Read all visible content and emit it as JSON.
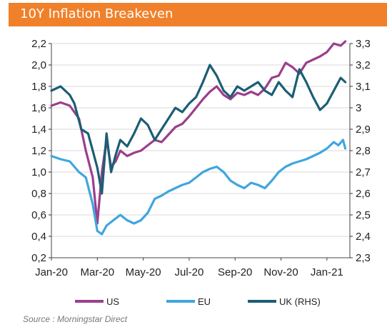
{
  "header": {
    "title": "10Y Inflation Breakeven"
  },
  "footer": {
    "source": "Source : Morningstar Direct"
  },
  "chart_data": {
    "type": "line",
    "title": "10Y Inflation Breakeven",
    "x_ticks": [
      "Jan-20",
      "Mar-20",
      "May-20",
      "Jul-20",
      "Sep-20",
      "Nov-20",
      "Jan-21"
    ],
    "x_range": [
      0,
      13
    ],
    "ylim_left": [
      0.2,
      2.2
    ],
    "yticks_left": [
      "0,2",
      "0,4",
      "0,6",
      "0,8",
      "1,0",
      "1,2",
      "1,4",
      "1,6",
      "1,8",
      "2,0",
      "2,2"
    ],
    "ylim_right": [
      2.3,
      3.3
    ],
    "yticks_right": [
      "2,3",
      "2,4",
      "2,5",
      "2,6",
      "2,7",
      "2,8",
      "2,9",
      "3",
      "3,1",
      "3,2",
      "3,3"
    ],
    "grid": true,
    "legend_position": "bottom",
    "series": [
      {
        "name": "US",
        "axis": "left",
        "color": "#9b3f8c",
        "x": [
          0,
          0.4,
          0.8,
          1.2,
          1.5,
          1.8,
          2.0,
          2.2,
          2.4,
          2.6,
          2.8,
          3.0,
          3.3,
          3.6,
          3.9,
          4.2,
          4.5,
          4.8,
          5.1,
          5.4,
          5.7,
          6.0,
          6.3,
          6.6,
          6.9,
          7.2,
          7.5,
          7.8,
          8.1,
          8.4,
          8.7,
          9.0,
          9.3,
          9.6,
          9.9,
          10.2,
          10.5,
          10.8,
          11.1,
          11.4,
          11.7,
          12.0,
          12.3,
          12.6,
          12.8
        ],
        "values": [
          1.62,
          1.65,
          1.62,
          1.5,
          1.2,
          0.95,
          0.52,
          1.0,
          1.3,
          1.05,
          1.1,
          1.2,
          1.15,
          1.18,
          1.2,
          1.25,
          1.3,
          1.28,
          1.35,
          1.42,
          1.45,
          1.52,
          1.6,
          1.68,
          1.75,
          1.8,
          1.72,
          1.68,
          1.74,
          1.72,
          1.75,
          1.72,
          1.78,
          1.88,
          1.9,
          2.02,
          1.98,
          1.92,
          2.02,
          2.05,
          2.08,
          2.12,
          2.2,
          2.18,
          2.22
        ]
      },
      {
        "name": "EU",
        "axis": "left",
        "color": "#3fa6de",
        "x": [
          0,
          0.4,
          0.8,
          1.2,
          1.5,
          1.8,
          2.0,
          2.2,
          2.4,
          2.7,
          3.0,
          3.3,
          3.6,
          3.9,
          4.2,
          4.5,
          4.8,
          5.1,
          5.4,
          5.7,
          6.0,
          6.3,
          6.6,
          6.9,
          7.2,
          7.5,
          7.8,
          8.1,
          8.4,
          8.7,
          9.0,
          9.3,
          9.6,
          9.9,
          10.2,
          10.5,
          10.8,
          11.1,
          11.4,
          11.7,
          12.0,
          12.3,
          12.5,
          12.7,
          12.8
        ],
        "values": [
          1.15,
          1.12,
          1.1,
          1.0,
          0.95,
          0.7,
          0.45,
          0.42,
          0.5,
          0.55,
          0.6,
          0.55,
          0.52,
          0.55,
          0.62,
          0.75,
          0.78,
          0.82,
          0.85,
          0.88,
          0.9,
          0.95,
          1.0,
          1.03,
          1.05,
          1.0,
          0.92,
          0.88,
          0.85,
          0.9,
          0.88,
          0.85,
          0.92,
          1.0,
          1.05,
          1.08,
          1.1,
          1.12,
          1.15,
          1.18,
          1.22,
          1.28,
          1.25,
          1.3,
          1.22
        ]
      },
      {
        "name": "UK (RHS)",
        "axis": "right",
        "color": "#1b5e74",
        "x": [
          0,
          0.4,
          0.8,
          1.0,
          1.3,
          1.6,
          1.8,
          2.0,
          2.2,
          2.4,
          2.6,
          2.8,
          3.0,
          3.3,
          3.6,
          3.9,
          4.2,
          4.5,
          4.8,
          5.1,
          5.4,
          5.7,
          6.0,
          6.3,
          6.6,
          6.9,
          7.2,
          7.5,
          7.8,
          8.1,
          8.4,
          8.7,
          9.0,
          9.3,
          9.6,
          9.9,
          10.2,
          10.5,
          10.8,
          11.1,
          11.4,
          11.7,
          12.0,
          12.3,
          12.6,
          12.8
        ],
        "values": [
          3.08,
          3.1,
          3.06,
          3.02,
          2.9,
          2.88,
          2.8,
          2.72,
          2.6,
          2.88,
          2.7,
          2.78,
          2.85,
          2.82,
          2.88,
          2.95,
          2.92,
          2.85,
          2.9,
          2.95,
          3.0,
          2.98,
          3.02,
          3.05,
          3.12,
          3.2,
          3.15,
          3.08,
          3.05,
          3.1,
          3.08,
          3.1,
          3.12,
          3.08,
          3.06,
          3.12,
          3.08,
          3.05,
          3.18,
          3.12,
          3.05,
          2.99,
          3.02,
          3.08,
          3.14,
          3.12
        ]
      }
    ]
  }
}
